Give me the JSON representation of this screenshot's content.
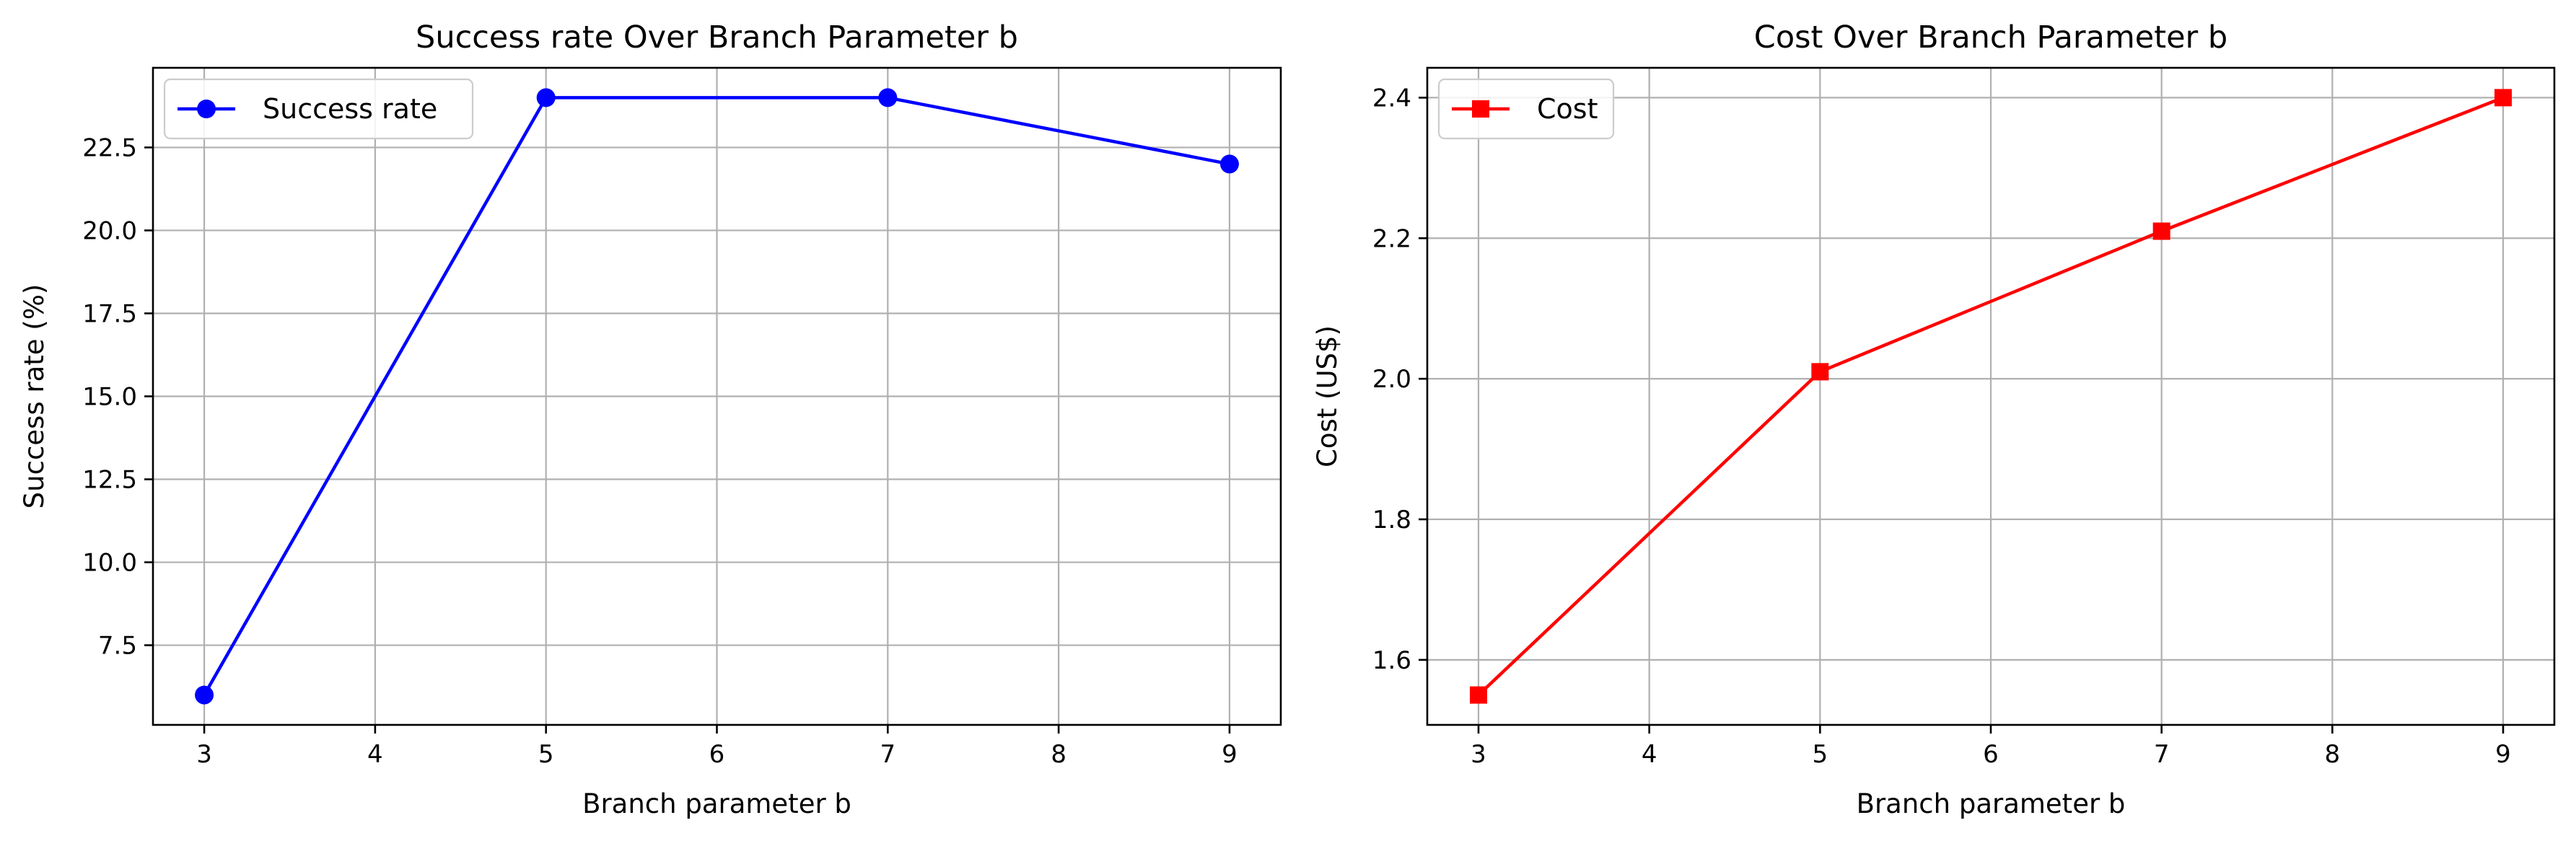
{
  "chart_data": [
    {
      "type": "line",
      "title": "Success rate Over Branch Parameter b",
      "xlabel": "Branch parameter b",
      "ylabel": "Success rate (%)",
      "x": [
        3,
        5,
        7,
        9
      ],
      "series": [
        {
          "name": "Success rate",
          "values": [
            6,
            24,
            24,
            22
          ],
          "color": "#0000ff",
          "marker": "circle"
        }
      ],
      "xlim": [
        2.7,
        9.3
      ],
      "ylim": [
        5.1,
        24.9
      ],
      "xticks": [
        3,
        4,
        5,
        6,
        7,
        8,
        9
      ],
      "yticks": [
        7.5,
        10.0,
        12.5,
        15.0,
        17.5,
        20.0,
        22.5
      ],
      "ytick_labels": [
        "7.5",
        "10.0",
        "12.5",
        "15.0",
        "17.5",
        "20.0",
        "22.5"
      ],
      "grid": true,
      "legend": "upper left"
    },
    {
      "type": "line",
      "title": "Cost Over Branch Parameter b",
      "xlabel": "Branch parameter b",
      "ylabel": "Cost (US$)",
      "x": [
        3,
        5,
        7,
        9
      ],
      "series": [
        {
          "name": "Cost",
          "values": [
            1.55,
            2.01,
            2.21,
            2.4
          ],
          "color": "#ff0000",
          "marker": "square"
        }
      ],
      "xlim": [
        2.7,
        9.3
      ],
      "ylim": [
        1.5075,
        2.4425
      ],
      "xticks": [
        3,
        4,
        5,
        6,
        7,
        8,
        9
      ],
      "yticks": [
        1.6,
        1.8,
        2.0,
        2.2,
        2.4
      ],
      "ytick_labels": [
        "1.6",
        "1.8",
        "2.0",
        "2.2",
        "2.4"
      ],
      "grid": true,
      "legend": "upper left"
    }
  ]
}
